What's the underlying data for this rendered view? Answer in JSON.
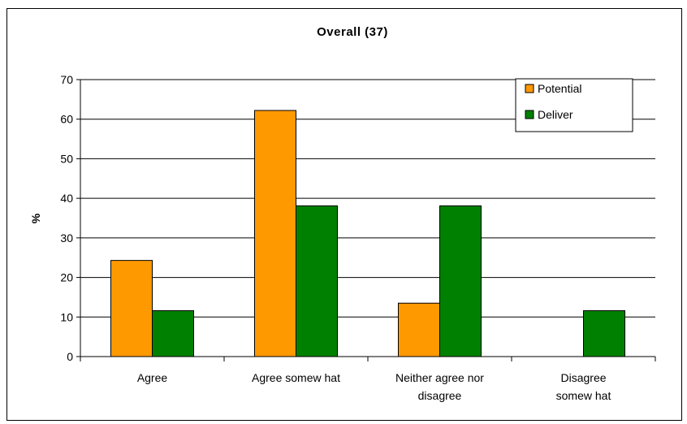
{
  "chart_data": {
    "type": "bar",
    "title": "Overall (37)",
    "ylabel": "%",
    "xlabel": "",
    "ylim": [
      0,
      70
    ],
    "yticks": [
      0,
      10,
      20,
      30,
      40,
      50,
      60,
      70
    ],
    "grid": true,
    "legend_position": "top-right",
    "categories": [
      [
        "Agree"
      ],
      [
        "Agree somew hat"
      ],
      [
        "Neither agree nor",
        "disagree"
      ],
      [
        "Disagree",
        "somew hat"
      ]
    ],
    "series": [
      {
        "name": "Potential",
        "color": "#FF9900",
        "values": [
          24.3,
          62.2,
          13.5,
          0
        ]
      },
      {
        "name": "Deliver",
        "color": "#008000",
        "values": [
          11.6,
          38.1,
          38.1,
          11.6
        ]
      }
    ]
  }
}
